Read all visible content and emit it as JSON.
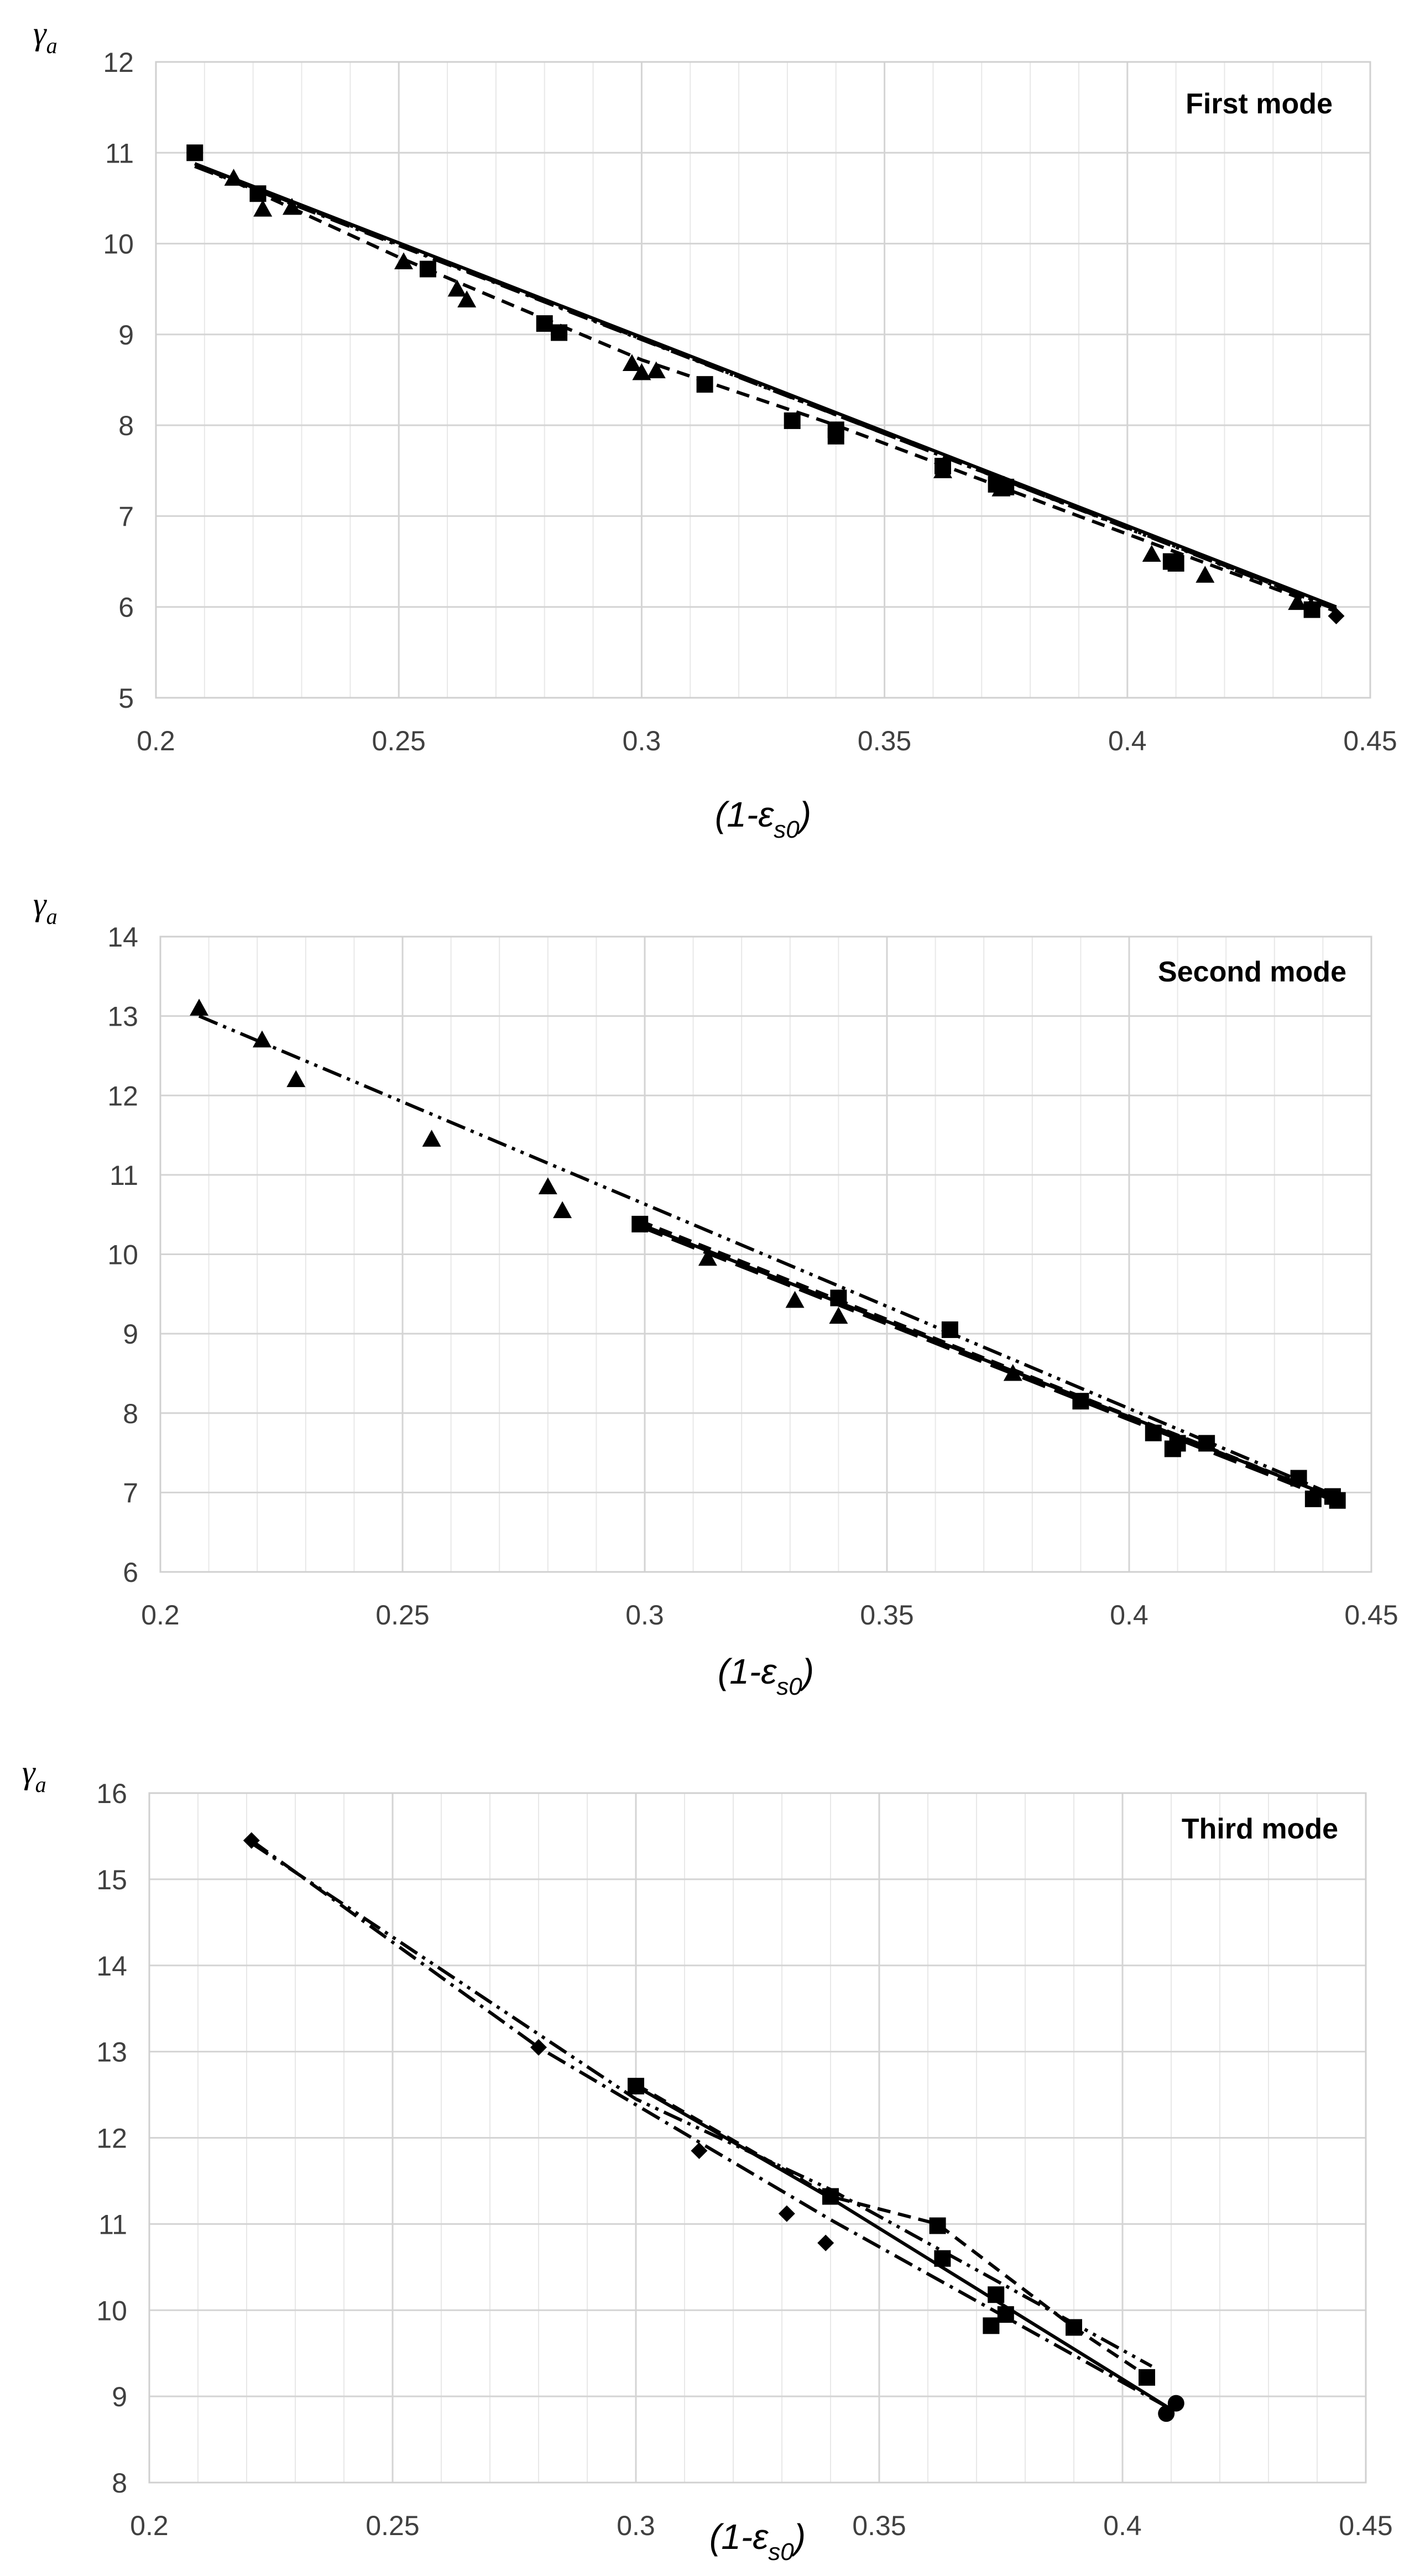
{
  "chart_data": [
    {
      "type": "scatter",
      "title": "First mode",
      "ylabel": {
        "main": "γ",
        "sub": "a"
      },
      "xlabel": {
        "pre": "(1-",
        "sym": "ε",
        "sub": "s0",
        "post": ")"
      },
      "xlim": [
        0.2,
        0.45
      ],
      "ylim": [
        5,
        12
      ],
      "xticks": [
        "0.2",
        "0.25",
        "0.3",
        "0.35",
        "0.4",
        "0.45"
      ],
      "yticks": [
        "5",
        "6",
        "7",
        "8",
        "9",
        "10",
        "11",
        "12"
      ],
      "grid": true,
      "series": [
        {
          "name": "squares",
          "marker": "square",
          "x": [
            0.208,
            0.221,
            0.256,
            0.28,
            0.283,
            0.313,
            0.331,
            0.34,
            0.34,
            0.362,
            0.373,
            0.375,
            0.409,
            0.41,
            0.438
          ],
          "y": [
            11.0,
            10.55,
            9.72,
            9.12,
            9.02,
            8.45,
            8.05,
            7.95,
            7.88,
            7.55,
            7.35,
            7.32,
            6.5,
            6.48,
            5.97
          ]
        },
        {
          "name": "triangles",
          "marker": "triangle",
          "x": [
            0.216,
            0.222,
            0.228,
            0.251,
            0.262,
            0.264,
            0.298,
            0.3,
            0.303,
            0.362,
            0.374,
            0.405,
            0.416,
            0.435
          ],
          "y": [
            10.72,
            10.38,
            10.4,
            9.8,
            9.5,
            9.38,
            8.68,
            8.58,
            8.6,
            7.5,
            7.3,
            6.58,
            6.35,
            6.05
          ]
        },
        {
          "name": "diamonds",
          "marker": "diamond",
          "x": [
            0.443
          ],
          "y": [
            5.9
          ]
        },
        {
          "name": "fit-solid",
          "line": "solid",
          "x": [
            0.208,
            0.443
          ],
          "y": [
            10.88,
            6.0
          ]
        },
        {
          "name": "fit-dashed",
          "line": "dashed",
          "x": [
            0.208,
            0.25,
            0.3,
            0.34,
            0.39,
            0.443
          ],
          "y": [
            10.88,
            9.85,
            8.72,
            8.0,
            7.0,
            5.95
          ]
        },
        {
          "name": "fit-dashdot",
          "line": "dashdot",
          "x": [
            0.208,
            0.443
          ],
          "y": [
            10.85,
            5.98
          ]
        },
        {
          "name": "fit-dashdotdot",
          "line": "dashdotdot",
          "x": [
            0.216,
            0.443
          ],
          "y": [
            10.7,
            5.97
          ]
        }
      ]
    },
    {
      "type": "scatter",
      "title": "Second mode",
      "ylabel": {
        "main": "γ",
        "sub": "a"
      },
      "xlabel": {
        "pre": "(1-",
        "sym": "ε",
        "sub": "s0",
        "post": ")"
      },
      "xlim": [
        0.2,
        0.45
      ],
      "ylim": [
        6,
        14
      ],
      "xticks": [
        "0.2",
        "0.25",
        "0.3",
        "0.35",
        "0.4",
        "0.45"
      ],
      "yticks": [
        "6",
        "7",
        "8",
        "9",
        "10",
        "11",
        "12",
        "13",
        "14"
      ],
      "grid": true,
      "series": [
        {
          "name": "triangles",
          "marker": "triangle",
          "x": [
            0.208,
            0.221,
            0.228,
            0.256,
            0.28,
            0.283,
            0.313,
            0.331,
            0.34,
            0.376
          ],
          "y": [
            13.1,
            12.7,
            12.2,
            11.45,
            10.85,
            10.55,
            9.95,
            9.42,
            9.22,
            8.5
          ]
        },
        {
          "name": "squares",
          "marker": "square",
          "x": [
            0.299,
            0.34,
            0.363,
            0.39,
            0.405,
            0.409,
            0.41,
            0.416,
            0.435,
            0.438,
            0.442,
            0.443
          ],
          "y": [
            10.38,
            9.45,
            9.05,
            8.15,
            7.75,
            7.55,
            7.62,
            7.62,
            7.18,
            6.92,
            6.95,
            6.9
          ]
        },
        {
          "name": "fit-dashdotdot",
          "line": "dashdotdot",
          "x": [
            0.208,
            0.443
          ],
          "y": [
            13.0,
            6.95
          ]
        },
        {
          "name": "fit-solid",
          "line": "solid",
          "x": [
            0.299,
            0.443
          ],
          "y": [
            10.38,
            6.92
          ]
        },
        {
          "name": "fit-dashed",
          "line": "dashed",
          "x": [
            0.299,
            0.443
          ],
          "y": [
            10.42,
            6.92
          ]
        },
        {
          "name": "fit-longdash",
          "line": "longdash",
          "x": [
            0.299,
            0.443
          ],
          "y": [
            10.35,
            6.88
          ]
        }
      ]
    },
    {
      "type": "scatter",
      "title": "Third mode",
      "ylabel": {
        "main": "γ",
        "sub": "a"
      },
      "xlabel": {
        "pre": "(1-",
        "sym": "ε",
        "sub": "s0",
        "post": ")"
      },
      "xlim": [
        0.2,
        0.45
      ],
      "ylim": [
        8,
        16
      ],
      "xticks": [
        "0.2",
        "0.25",
        "0.3",
        "0.35",
        "0.4",
        "0.45"
      ],
      "yticks": [
        "8",
        "9",
        "10",
        "11",
        "12",
        "13",
        "14",
        "15",
        "16"
      ],
      "grid": true,
      "series": [
        {
          "name": "diamonds",
          "marker": "diamond",
          "x": [
            0.221,
            0.28,
            0.313,
            0.331,
            0.339
          ],
          "y": [
            15.45,
            13.05,
            11.85,
            11.12,
            10.78
          ]
        },
        {
          "name": "squares",
          "marker": "square",
          "x": [
            0.3,
            0.34,
            0.362,
            0.363,
            0.373,
            0.374,
            0.376,
            0.39,
            0.405
          ],
          "y": [
            12.6,
            11.32,
            10.98,
            10.6,
            9.82,
            10.18,
            9.95,
            9.8,
            9.22
          ]
        },
        {
          "name": "circles",
          "marker": "circle",
          "x": [
            0.409,
            0.411
          ],
          "y": [
            8.8,
            8.92
          ]
        },
        {
          "name": "fit-dashdot",
          "line": "dashdot",
          "x": [
            0.221,
            0.28,
            0.34,
            0.41
          ],
          "y": [
            15.45,
            13.05,
            11.05,
            8.85
          ]
        },
        {
          "name": "fit-dashdotdot",
          "line": "dashdotdot",
          "x": [
            0.221,
            0.3,
            0.34,
            0.406
          ],
          "y": [
            15.42,
            12.45,
            11.4,
            9.35
          ]
        },
        {
          "name": "fit-solid",
          "line": "solid",
          "x": [
            0.3,
            0.34,
            0.41
          ],
          "y": [
            12.6,
            11.3,
            8.85
          ]
        },
        {
          "name": "fit-dashed",
          "line": "dashed",
          "x": [
            0.3,
            0.34,
            0.362,
            0.39,
            0.406
          ],
          "y": [
            12.62,
            11.32,
            11.0,
            9.8,
            9.2
          ]
        }
      ]
    }
  ]
}
